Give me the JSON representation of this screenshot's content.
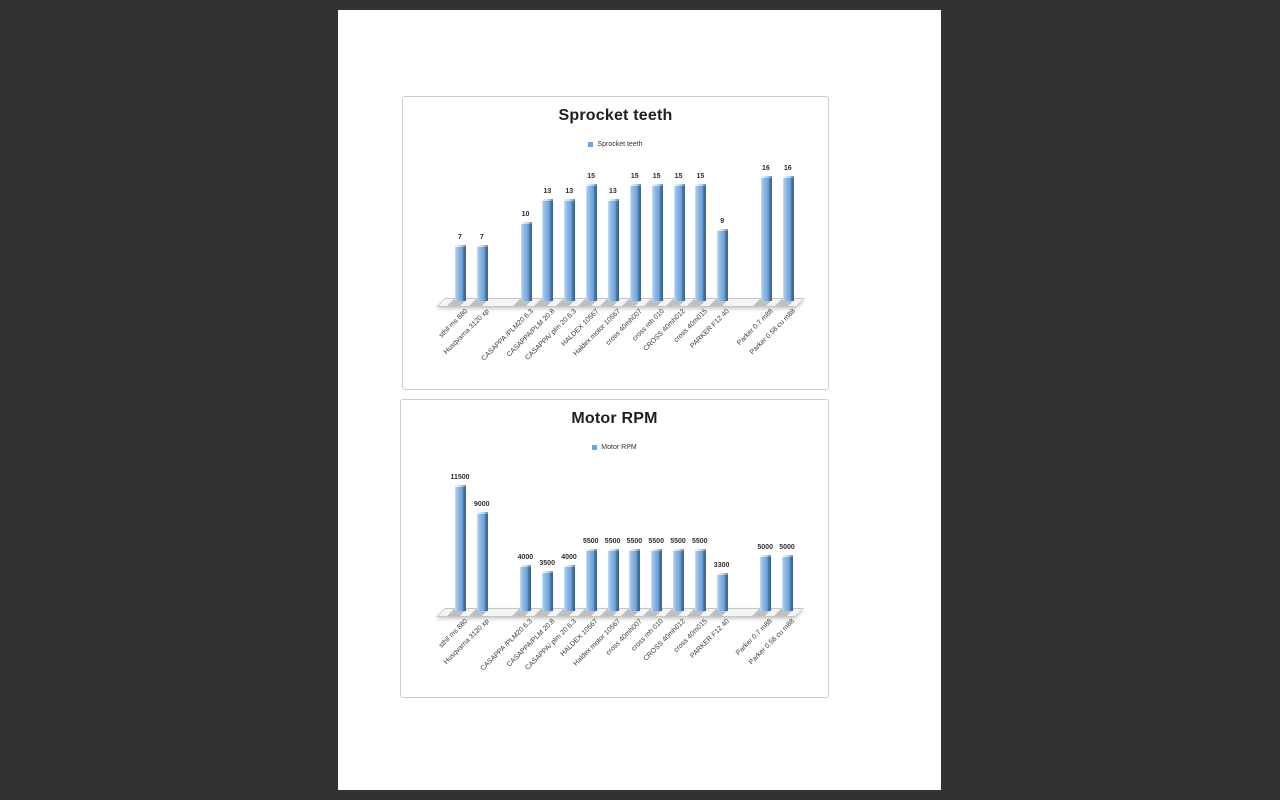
{
  "window": {
    "background_color": "#323232",
    "page_color": "#ffffff"
  },
  "colors": {
    "bar_accent": "#4f81bd",
    "bar_highlight": "#cfe2f3",
    "bar_side": "#3a6193",
    "legend_swatch": "#73a2d8",
    "chart_border": "#cdcdcd",
    "title_text": "#1f1f1f",
    "label_text": "#3a3a3a",
    "floor_gray": "#bfbfbf"
  },
  "chart_data": [
    {
      "type": "bar",
      "title": "Sprocket teeth",
      "legend": "Sprocket teeth",
      "legend_position": "top",
      "grid": false,
      "categories": [
        "sthil ms 880",
        "Husqvarna 3120 xp",
        "CASAPPA /PLM20 6.3",
        "CASAPPA/PLM 20.8",
        "CASAPPA/ plm 20 6.3",
        "HALDEX 10567",
        "Haldex motor 10567",
        "cross 40mh007",
        "cross mh 010",
        "CROSS 40mh012",
        "cross 40m015",
        "PARKER F12 40",
        "Parker 0.7 m88",
        "Parker 0.58 cu m88"
      ],
      "values": [
        7,
        7,
        10,
        13,
        13,
        15,
        13,
        15,
        15,
        15,
        15,
        9,
        16,
        16
      ],
      "empty_slot_after": [
        "Husqvarna 3120 xp",
        "PARKER F12 40"
      ],
      "xlabel": "",
      "ylabel": "",
      "ylim": [
        0,
        16
      ]
    },
    {
      "type": "bar",
      "title": "Motor RPM",
      "legend": "Motor RPM",
      "legend_position": "top",
      "grid": false,
      "categories": [
        "sthil ms 880",
        "Husqvarna 3120 xp",
        "CASAPPA /PLM20 6.3",
        "CASAPPA/PLM 20.8",
        "CASAPPA/ plm 20 6.3",
        "HALDEX 10567",
        "Haldex motor 10567",
        "cross 40mh007",
        "cross mh 010",
        "CROSS 40mh012",
        "cross 40m015",
        "PARKER F12 40",
        "Parker 0.7 m88",
        "Parker 0.58 cu m88"
      ],
      "values": [
        11500,
        9000,
        4000,
        3500,
        4000,
        5500,
        5500,
        5500,
        5500,
        5500,
        5500,
        3300,
        5000,
        5000
      ],
      "empty_slot_after": [
        "Husqvarna 3120 xp",
        "PARKER F12 40"
      ],
      "xlabel": "",
      "ylabel": "",
      "ylim": [
        0,
        11500
      ]
    }
  ]
}
